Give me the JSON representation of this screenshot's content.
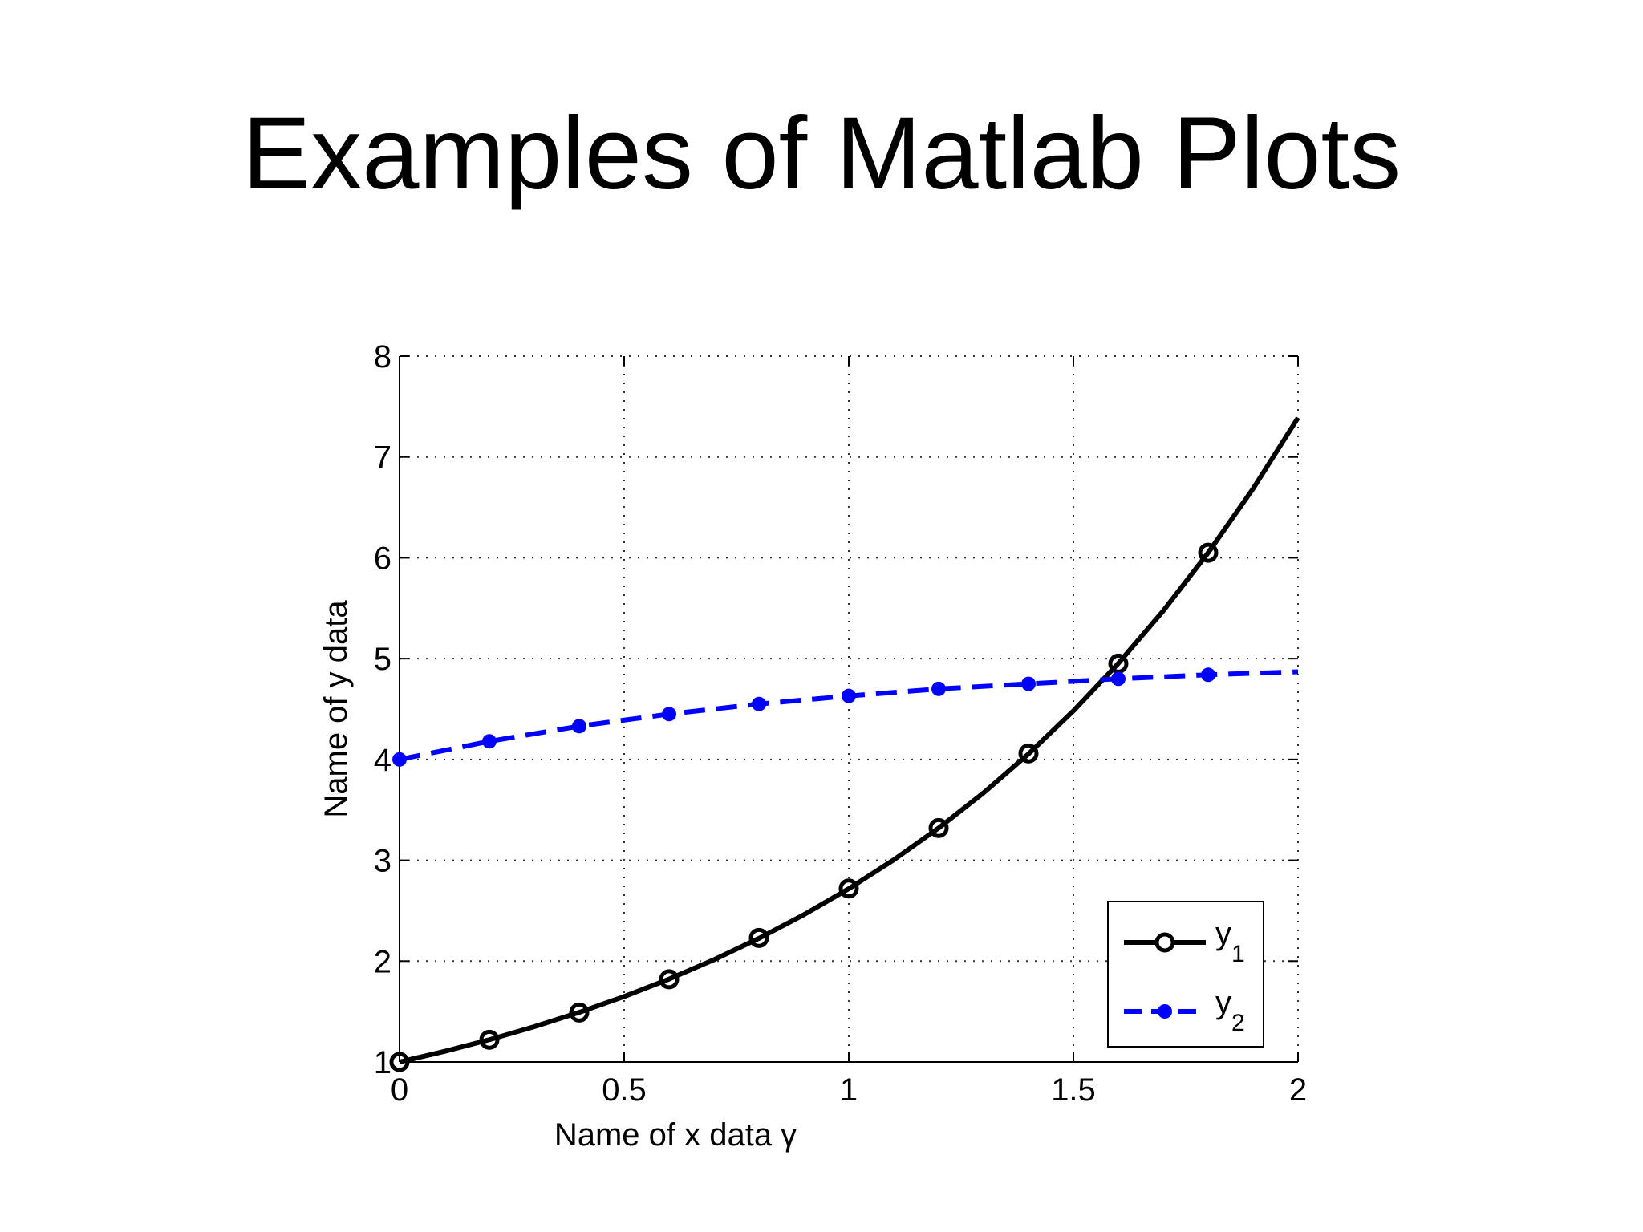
{
  "slide": {
    "title": "Examples of Matlab Plots"
  },
  "chart_data": {
    "type": "line",
    "title": "",
    "xlabel": "Name of x data γ",
    "ylabel": "Name of y data",
    "xlim": [
      0,
      2
    ],
    "ylim": [
      1,
      8
    ],
    "xticks": [
      0,
      0.5,
      1,
      1.5,
      2
    ],
    "xtick_labels": [
      "0",
      "0.5",
      "1",
      "1.5",
      "2"
    ],
    "yticks": [
      1,
      2,
      3,
      4,
      5,
      6,
      7,
      8
    ],
    "ytick_labels": [
      "1",
      "2",
      "3",
      "4",
      "5",
      "6",
      "7",
      "8"
    ],
    "grid": true,
    "grid_style": "dotted",
    "legend_position": "bottom-right",
    "series": [
      {
        "name": "y",
        "subscript": "1",
        "color": "#000000",
        "line_style": "solid",
        "marker": "open-circle",
        "x": [
          0,
          0.2,
          0.4,
          0.6,
          0.8,
          1.0,
          1.2,
          1.4,
          1.6,
          1.8
        ],
        "y": [
          1.0,
          1.22,
          1.49,
          1.82,
          2.23,
          2.72,
          3.32,
          4.06,
          4.95,
          6.05
        ],
        "curve_x": [
          0,
          0.1,
          0.2,
          0.3,
          0.4,
          0.5,
          0.6,
          0.7,
          0.8,
          0.9,
          1.0,
          1.1,
          1.2,
          1.3,
          1.4,
          1.5,
          1.6,
          1.7,
          1.8,
          1.9,
          2.0
        ],
        "curve_y": [
          1.0,
          1.105,
          1.221,
          1.35,
          1.492,
          1.649,
          1.822,
          2.014,
          2.226,
          2.46,
          2.718,
          3.004,
          3.32,
          3.669,
          4.055,
          4.482,
          4.953,
          5.474,
          6.05,
          6.686,
          7.389
        ]
      },
      {
        "name": "y",
        "subscript": "2",
        "color": "#0000ff",
        "line_style": "dashed",
        "marker": "filled-circle",
        "x": [
          0,
          0.2,
          0.4,
          0.6,
          0.8,
          1.0,
          1.2,
          1.4,
          1.6,
          1.8
        ],
        "y": [
          4.0,
          4.18,
          4.33,
          4.45,
          4.55,
          4.63,
          4.7,
          4.75,
          4.8,
          4.84
        ],
        "curve_x": [
          0,
          0.2,
          0.4,
          0.6,
          0.8,
          1.0,
          1.2,
          1.4,
          1.6,
          1.8,
          2.0
        ],
        "curve_y": [
          4.0,
          4.18,
          4.33,
          4.45,
          4.55,
          4.63,
          4.7,
          4.75,
          4.8,
          4.84,
          4.87
        ]
      }
    ]
  }
}
